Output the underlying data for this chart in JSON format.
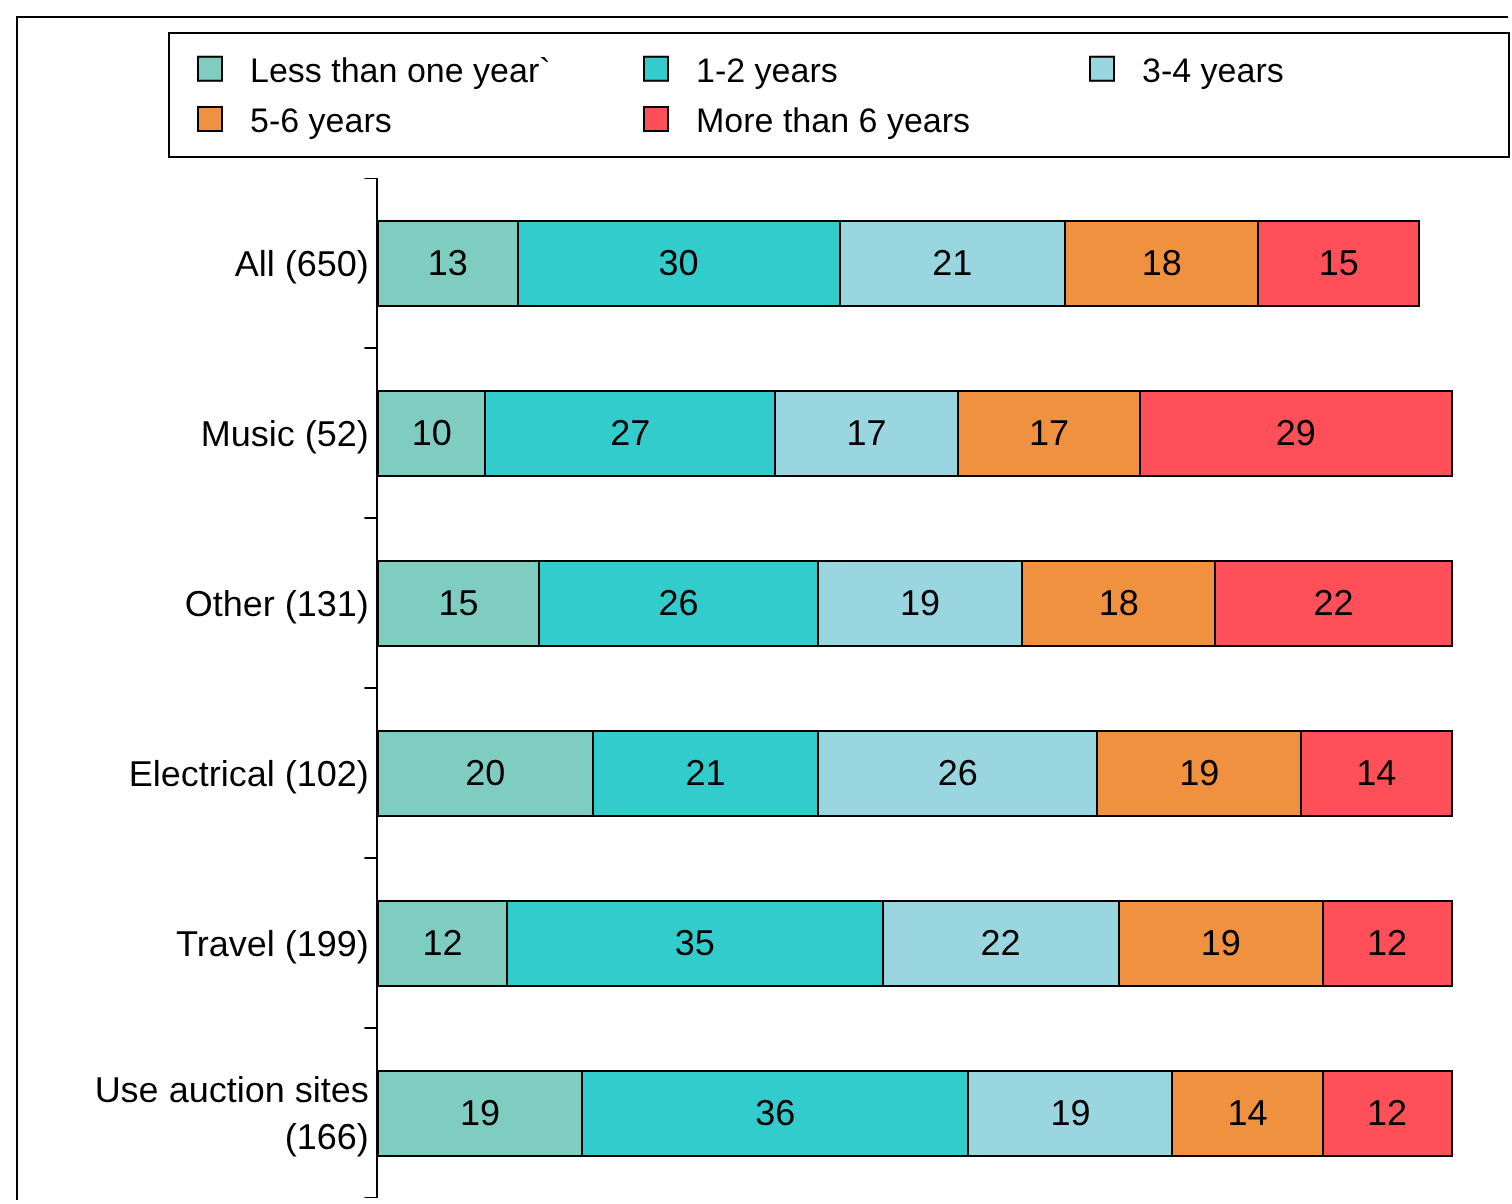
{
  "chart_data": {
    "type": "bar",
    "orientation": "horizontal",
    "stacked": true,
    "data_labels": true,
    "tick_labels": "y",
    "legend": "top",
    "categories": [
      "All (650)",
      "Music (52)",
      "Other (131)",
      "Electrical (102)",
      "Travel (199)",
      "Use auction sites\n(166)"
    ],
    "series": [
      {
        "name": "Less than one year`",
        "color": "#7fccc0",
        "values": [
          13,
          10,
          15,
          20,
          12,
          19
        ]
      },
      {
        "name": "1-2 years",
        "color": "#33cccc",
        "values": [
          30,
          27,
          26,
          21,
          35,
          36
        ]
      },
      {
        "name": "3-4 years",
        "color": "#99d6e0",
        "values": [
          21,
          17,
          19,
          26,
          22,
          19
        ]
      },
      {
        "name": "5-6 years",
        "color": "#f0913f",
        "values": [
          18,
          17,
          18,
          19,
          19,
          14
        ]
      },
      {
        "name": "More than 6 years",
        "color": "#ff505a",
        "values": [
          15,
          29,
          22,
          14,
          12,
          12
        ]
      }
    ]
  }
}
